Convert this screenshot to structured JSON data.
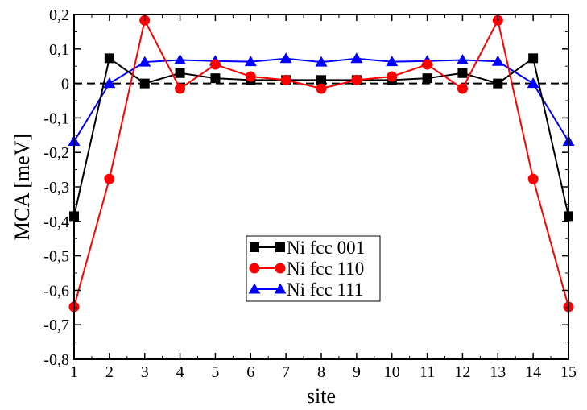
{
  "chart_data": {
    "type": "line",
    "title": "",
    "xlabel": "site",
    "ylabel": "MCA [meV]",
    "x": [
      1,
      2,
      3,
      4,
      5,
      6,
      7,
      8,
      9,
      10,
      11,
      12,
      13,
      14,
      15
    ],
    "xlim": [
      1,
      15
    ],
    "ylim": [
      -0.8,
      0.2
    ],
    "x_ticks": [
      1,
      2,
      3,
      4,
      5,
      6,
      7,
      8,
      9,
      10,
      11,
      12,
      13,
      14,
      15
    ],
    "y_ticks": [
      -0.8,
      -0.7,
      -0.6,
      -0.5,
      -0.4,
      -0.3,
      -0.2,
      -0.1,
      0,
      0.1,
      0.2
    ],
    "y_tick_labels": [
      "-0,8",
      "-0,7",
      "-0,6",
      "-0,5",
      "-0,4",
      "-0,3",
      "-0,2",
      "-0,1",
      "0",
      "0,1",
      "0,2"
    ],
    "reference_line": {
      "y": 0,
      "style": "dashed",
      "color": "#000000"
    },
    "grid": false,
    "legend_position": "lower-center",
    "series": [
      {
        "name": "Ni fcc 001",
        "color": "#000000",
        "marker": "square",
        "values": [
          -0.385,
          0.073,
          0.0,
          0.03,
          0.015,
          0.01,
          0.01,
          0.01,
          0.01,
          0.01,
          0.015,
          0.03,
          0.0,
          0.073,
          -0.385
        ]
      },
      {
        "name": "Ni fcc 110",
        "color": "#ff0000",
        "marker": "circle",
        "values": [
          -0.648,
          -0.277,
          0.183,
          -0.015,
          0.055,
          0.02,
          0.01,
          -0.015,
          0.01,
          0.02,
          0.055,
          -0.015,
          0.183,
          -0.277,
          -0.648
        ]
      },
      {
        "name": "Ni fcc 111",
        "color": "#0000ff",
        "marker": "triangle",
        "values": [
          -0.168,
          0.0,
          0.062,
          0.068,
          0.065,
          0.063,
          0.072,
          0.062,
          0.072,
          0.063,
          0.065,
          0.068,
          0.064,
          0.0,
          -0.168
        ]
      }
    ]
  }
}
